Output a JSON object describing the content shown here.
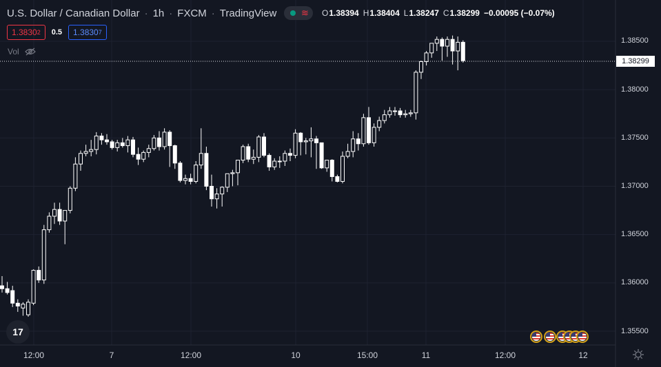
{
  "header": {
    "symbol_name": "U.S. Dollar / Canadian Dollar",
    "interval": "1h",
    "exchange": "FXCM",
    "source": "TradingView",
    "separator": "·",
    "ohlc": {
      "open_key": "O",
      "open": "1.38394",
      "high_key": "H",
      "high": "1.38404",
      "low_key": "L",
      "low": "1.38247",
      "close_key": "C",
      "close": "1.38299",
      "change": "−0.00095 (−0.07%)"
    }
  },
  "quotes": {
    "sell_main": "1.3830",
    "sell_sup": "2",
    "spread": "0.5",
    "buy_main": "1.3830",
    "buy_sup": "7"
  },
  "volume_label": "Vol",
  "logo_text": "17",
  "price_axis": {
    "ticks": [
      "1.38500",
      "1.38000",
      "1.37500",
      "1.37000",
      "1.36500",
      "1.36000",
      "1.35500"
    ],
    "last_price": "1.38299"
  },
  "time_axis": [
    "12:00",
    "7",
    "12:00",
    "10",
    "15:00",
    "11",
    "12:00",
    "12"
  ],
  "colors": {
    "background": "#131722",
    "grid": "#1e2230",
    "candle": "#ffffff",
    "down_price": "#f23645",
    "up_price": "#2962ff"
  },
  "chart_data": {
    "type": "candlestick",
    "ylim": [
      1.352,
      1.3885
    ],
    "grid": true,
    "candles": [
      [
        1.3597,
        1.3607,
        1.359,
        1.3594
      ],
      [
        1.3594,
        1.3601,
        1.3588,
        1.359
      ],
      [
        1.3592,
        1.3597,
        1.3575,
        1.3579
      ],
      [
        1.3579,
        1.3583,
        1.357,
        1.3576
      ],
      [
        1.3574,
        1.358,
        1.3566,
        1.3578
      ],
      [
        1.3567,
        1.3583,
        1.3565,
        1.358
      ],
      [
        1.3579,
        1.3614,
        1.3577,
        1.3613
      ],
      [
        1.3613,
        1.3617,
        1.36,
        1.3603
      ],
      [
        1.3603,
        1.366,
        1.3599,
        1.3655
      ],
      [
        1.3655,
        1.3673,
        1.3652,
        1.3669
      ],
      [
        1.3669,
        1.3683,
        1.3661,
        1.3676
      ],
      [
        1.3676,
        1.3683,
        1.366,
        1.3664
      ],
      [
        1.3664,
        1.3675,
        1.364,
        1.3675
      ],
      [
        1.3675,
        1.37,
        1.3672,
        1.3698
      ],
      [
        1.3698,
        1.373,
        1.3695,
        1.3723
      ],
      [
        1.3723,
        1.3737,
        1.3716,
        1.3734
      ],
      [
        1.3734,
        1.3743,
        1.3731,
        1.3736
      ],
      [
        1.3736,
        1.3748,
        1.3731,
        1.3738
      ],
      [
        1.3738,
        1.3756,
        1.3733,
        1.3752
      ],
      [
        1.3752,
        1.3755,
        1.3743,
        1.3748
      ],
      [
        1.3748,
        1.3754,
        1.3743,
        1.3746
      ],
      [
        1.3746,
        1.3748,
        1.3738,
        1.374
      ],
      [
        1.374,
        1.3748,
        1.3736,
        1.3745
      ],
      [
        1.3745,
        1.375,
        1.374,
        1.3742
      ],
      [
        1.3742,
        1.3752,
        1.3735,
        1.3748
      ],
      [
        1.3748,
        1.3751,
        1.373,
        1.3733
      ],
      [
        1.3733,
        1.374,
        1.3722,
        1.3728
      ],
      [
        1.3728,
        1.3737,
        1.3725,
        1.3735
      ],
      [
        1.3735,
        1.3743,
        1.373,
        1.3739
      ],
      [
        1.3739,
        1.3753,
        1.3737,
        1.375
      ],
      [
        1.375,
        1.3757,
        1.3737,
        1.3741
      ],
      [
        1.3741,
        1.376,
        1.3738,
        1.3756
      ],
      [
        1.3756,
        1.3758,
        1.372,
        1.3742
      ],
      [
        1.3742,
        1.3743,
        1.3718,
        1.3724
      ],
      [
        1.3724,
        1.3726,
        1.3704,
        1.3706
      ],
      [
        1.3706,
        1.3712,
        1.3702,
        1.3708
      ],
      [
        1.3708,
        1.3713,
        1.3702,
        1.3705
      ],
      [
        1.3705,
        1.3726,
        1.3703,
        1.3722
      ],
      [
        1.3722,
        1.376,
        1.3718,
        1.3734
      ],
      [
        1.3734,
        1.3741,
        1.3696,
        1.37
      ],
      [
        1.37,
        1.3712,
        1.3679,
        1.3687
      ],
      [
        1.3687,
        1.3698,
        1.3677,
        1.3692
      ],
      [
        1.3692,
        1.37,
        1.3679,
        1.3699
      ],
      [
        1.3699,
        1.3713,
        1.3694,
        1.3713
      ],
      [
        1.3713,
        1.3717,
        1.37,
        1.3714
      ],
      [
        1.3714,
        1.3726,
        1.3701,
        1.3727
      ],
      [
        1.3727,
        1.3743,
        1.3724,
        1.3741
      ],
      [
        1.3741,
        1.3744,
        1.3725,
        1.3728
      ],
      [
        1.3728,
        1.3738,
        1.3723,
        1.373
      ],
      [
        1.373,
        1.3753,
        1.3725,
        1.3751
      ],
      [
        1.3751,
        1.3755,
        1.373,
        1.3732
      ],
      [
        1.3732,
        1.3734,
        1.3716,
        1.372
      ],
      [
        1.372,
        1.3729,
        1.3717,
        1.3726
      ],
      [
        1.3726,
        1.3731,
        1.3719,
        1.3726
      ],
      [
        1.3726,
        1.3737,
        1.3721,
        1.3734
      ],
      [
        1.3734,
        1.3739,
        1.3726,
        1.3732
      ],
      [
        1.3732,
        1.3759,
        1.3729,
        1.3755
      ],
      [
        1.3755,
        1.3756,
        1.3732,
        1.3746
      ],
      [
        1.3746,
        1.375,
        1.3733,
        1.3747
      ],
      [
        1.3747,
        1.3761,
        1.373,
        1.3749
      ],
      [
        1.3749,
        1.3752,
        1.3718,
        1.3745
      ],
      [
        1.3745,
        1.3743,
        1.3718,
        1.3719
      ],
      [
        1.3719,
        1.3726,
        1.3715,
        1.3727
      ],
      [
        1.3727,
        1.3728,
        1.3705,
        1.371
      ],
      [
        1.371,
        1.3712,
        1.3704,
        1.3705
      ],
      [
        1.3705,
        1.3736,
        1.3703,
        1.3731
      ],
      [
        1.3731,
        1.3744,
        1.3729,
        1.3736
      ],
      [
        1.3736,
        1.3757,
        1.373,
        1.3749
      ],
      [
        1.3749,
        1.3755,
        1.3737,
        1.3744
      ],
      [
        1.3744,
        1.3775,
        1.3741,
        1.3771
      ],
      [
        1.3771,
        1.3782,
        1.3743,
        1.3745
      ],
      [
        1.3745,
        1.3765,
        1.3741,
        1.3761
      ],
      [
        1.3761,
        1.3772,
        1.3757,
        1.3768
      ],
      [
        1.3768,
        1.3779,
        1.3765,
        1.3774
      ],
      [
        1.3774,
        1.3782,
        1.3771,
        1.3778
      ],
      [
        1.3778,
        1.3782,
        1.3773,
        1.3778
      ],
      [
        1.3778,
        1.3781,
        1.3771,
        1.3774
      ],
      [
        1.3774,
        1.3779,
        1.3771,
        1.3775
      ],
      [
        1.3775,
        1.3779,
        1.3772,
        1.3776
      ],
      [
        1.3776,
        1.382,
        1.3769,
        1.3818
      ],
      [
        1.3818,
        1.383,
        1.3811,
        1.3829
      ],
      [
        1.3829,
        1.384,
        1.3825,
        1.3838
      ],
      [
        1.3838,
        1.3848,
        1.3833,
        1.3848
      ],
      [
        1.3848,
        1.3855,
        1.384,
        1.3852
      ],
      [
        1.3852,
        1.3854,
        1.383,
        1.3845
      ],
      [
        1.3845,
        1.3855,
        1.3834,
        1.3852
      ],
      [
        1.3852,
        1.3856,
        1.3826,
        1.384
      ],
      [
        1.384,
        1.3855,
        1.382,
        1.3849
      ],
      [
        1.3849,
        1.3851,
        1.3828,
        1.383
      ]
    ]
  }
}
